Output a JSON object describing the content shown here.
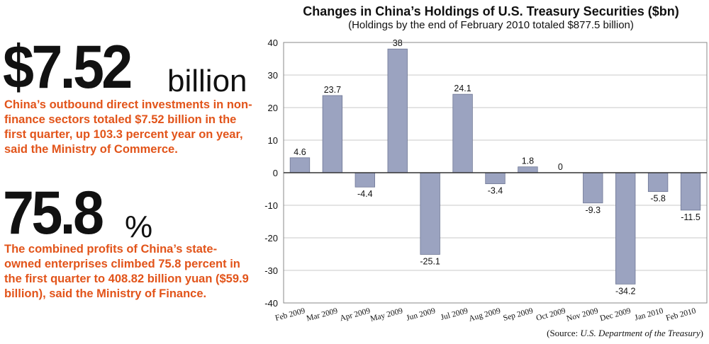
{
  "stats": [
    {
      "value": "$7.52",
      "unit": "billion",
      "description": "China’s outbound direct investments in non-finance sectors totaled $7.52 billion in the first quarter, up 103.3 percent year on year, said the Ministry of Commerce."
    },
    {
      "value": "75.8",
      "unit": "%",
      "description": "The combined profits of China’s state-owned enterprises climbed 75.8 percent in the first quarter to 408.82 billion yuan ($59.9 billion), said the Ministry of Finance."
    }
  ],
  "source": {
    "prefix": "(Source: ",
    "name": "U.S. Department of the Treasury",
    "suffix": ")"
  },
  "chart_data": {
    "type": "bar",
    "title": "Changes in China’s Holdings of U.S. Treasury Securities ($bn)",
    "subtitle": "(Holdings by the end of February 2010 totaled $877.5 billion)",
    "categories": [
      "Feb 2009",
      "Mar 2009",
      "Apr 2009",
      "May 2009",
      "Jun 2009",
      "Jul 2009",
      "Aug 2009",
      "Sep 2009",
      "Oct 2009",
      "Nov 2009",
      "Dec 2009",
      "Jan 2010",
      "Feb 2010"
    ],
    "values": [
      4.6,
      23.7,
      -4.4,
      38,
      -25.1,
      24.1,
      -3.4,
      1.8,
      0,
      -9.3,
      -34.2,
      -5.8,
      -11.5
    ],
    "value_labels": [
      "4.6",
      "23.7",
      "-4.4",
      "38",
      "-25.1",
      "24.1",
      "-3.4",
      "1.8",
      "0",
      "-9.3",
      "-34.2",
      "-5.8",
      "-11.5"
    ],
    "yticks": [
      40,
      30,
      20,
      10,
      0,
      -10,
      -20,
      -30,
      -40
    ],
    "ylim": [
      -40,
      40
    ],
    "grid": true,
    "bar_color": "#9ba3c0"
  }
}
